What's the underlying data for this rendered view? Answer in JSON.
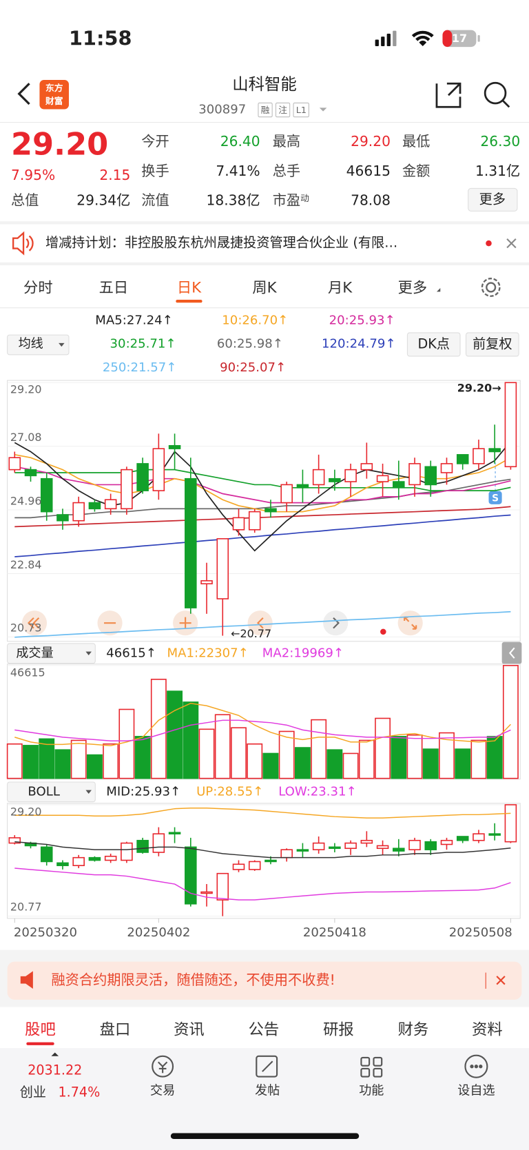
{
  "status": {
    "time": "11:58",
    "battery": "17"
  },
  "header": {
    "logo": [
      "东方",
      "财富"
    ],
    "title": "山科智能",
    "code": "300897",
    "badges": [
      "融",
      "注",
      "L1"
    ]
  },
  "quote": {
    "price": "29.20",
    "change_pct": "7.95%",
    "change": "2.15",
    "fields": [
      {
        "label": "今开",
        "value": "26.40"
      },
      {
        "label": "最高",
        "value": "29.20"
      },
      {
        "label": "最低",
        "value": "26.30"
      },
      {
        "label": "换手",
        "value": "7.41%"
      },
      {
        "label": "总手",
        "value": "46615"
      },
      {
        "label": "金额",
        "value": "1.31亿"
      },
      {
        "label": "总值",
        "value": "29.34亿"
      },
      {
        "label": "流值",
        "value": "18.38亿"
      },
      {
        "label": "市盈",
        "sup": "动",
        "value": "78.08"
      }
    ],
    "more": "更多"
  },
  "notice": "增减持计划：非控股股东杭州晟捷投资管理合伙企业 (有限…",
  "tabs": [
    "分时",
    "五日",
    "日K",
    "周K",
    "月K",
    "更多"
  ],
  "active_tab": 2,
  "chart": {
    "type": "candlestick",
    "indicator_button": "均线",
    "buttons": [
      "DK点",
      "前复权"
    ],
    "ma_legend": [
      {
        "text": "MA5:27.24↑",
        "color": "#222222"
      },
      {
        "text": "10:26.70↑",
        "color": "#f5a623"
      },
      {
        "text": "20:25.93↑",
        "color": "#d42a9c"
      },
      {
        "text": "30:25.71↑",
        "color": "#12a02a"
      },
      {
        "text": "60:25.98↑",
        "color": "#666666"
      },
      {
        "text": "120:24.79↑",
        "color": "#2c3fb8"
      },
      {
        "text": "250:21.57↑",
        "color": "#6bbcf0"
      },
      {
        "text": "90:25.07↑",
        "color": "#c8262d"
      }
    ],
    "dates": [
      "20250320",
      null,
      null,
      null,
      null,
      null,
      null,
      null,
      null,
      "20250402",
      null,
      null,
      null,
      null,
      null,
      null,
      null,
      null,
      null,
      null,
      "20250418",
      null,
      null,
      null,
      null,
      null,
      null,
      null,
      null,
      null,
      null,
      "20250508"
    ],
    "price": {
      "ylim": [
        20.73,
        29.2
      ],
      "yticks": [
        {
          "value": 29.2,
          "label": "29.20"
        },
        {
          "value": 27.08,
          "label": "27.08"
        },
        {
          "value": 24.96,
          "label": "24.96"
        },
        {
          "value": 22.84,
          "label": "22.84"
        },
        {
          "value": 20.73,
          "label": "20.73"
        }
      ],
      "high_label": "29.20→",
      "low_label": "←20.77",
      "candles": [
        {
          "open": 26.3,
          "high": 26.9,
          "low": 26.2,
          "close": 26.7
        },
        {
          "open": 26.3,
          "high": 26.4,
          "low": 25.9,
          "close": 26.1
        },
        {
          "open": 26.0,
          "high": 26.2,
          "low": 24.6,
          "close": 24.9
        },
        {
          "open": 24.8,
          "high": 25.0,
          "low": 24.3,
          "close": 24.6
        },
        {
          "open": 24.6,
          "high": 25.4,
          "low": 24.4,
          "close": 25.2
        },
        {
          "open": 25.2,
          "high": 25.3,
          "low": 24.9,
          "close": 25.0
        },
        {
          "open": 25.0,
          "high": 25.5,
          "low": 24.8,
          "close": 25.3
        },
        {
          "open": 25.0,
          "high": 26.4,
          "low": 24.8,
          "close": 26.3
        },
        {
          "open": 26.5,
          "high": 26.7,
          "low": 25.5,
          "close": 25.6
        },
        {
          "open": 25.6,
          "high": 27.5,
          "low": 25.3,
          "close": 27.0
        },
        {
          "open": 27.1,
          "high": 27.5,
          "low": 26.3,
          "close": 27.0
        },
        {
          "open": 26.0,
          "high": 26.7,
          "low": 21.5,
          "close": 21.7
        },
        {
          "open": 22.5,
          "high": 23.2,
          "low": 21.5,
          "close": 22.6
        },
        {
          "open": 22.0,
          "high": 24.0,
          "low": 20.77,
          "close": 24.0
        },
        {
          "open": 24.3,
          "high": 25.0,
          "low": 24.1,
          "close": 24.7
        },
        {
          "open": 24.3,
          "high": 25.0,
          "low": 24.2,
          "close": 24.9
        },
        {
          "open": 25.0,
          "high": 25.3,
          "low": 24.7,
          "close": 24.9
        },
        {
          "open": 25.2,
          "high": 25.9,
          "low": 24.9,
          "close": 25.8
        },
        {
          "open": 25.8,
          "high": 26.3,
          "low": 25.2,
          "close": 25.7
        },
        {
          "open": 25.8,
          "high": 26.8,
          "low": 25.5,
          "close": 26.3
        },
        {
          "open": 26.0,
          "high": 26.3,
          "low": 25.6,
          "close": 25.9
        },
        {
          "open": 25.9,
          "high": 26.5,
          "low": 25.4,
          "close": 26.3
        },
        {
          "open": 26.3,
          "high": 27.2,
          "low": 26.0,
          "close": 26.5
        },
        {
          "open": 25.9,
          "high": 26.5,
          "low": 25.4,
          "close": 26.1
        },
        {
          "open": 25.9,
          "high": 26.6,
          "low": 25.3,
          "close": 25.7
        },
        {
          "open": 25.8,
          "high": 26.7,
          "low": 25.4,
          "close": 26.5
        },
        {
          "open": 26.4,
          "high": 26.6,
          "low": 25.4,
          "close": 25.8
        },
        {
          "open": 26.2,
          "high": 26.7,
          "low": 25.8,
          "close": 26.5
        },
        {
          "open": 26.8,
          "high": 26.8,
          "low": 26.3,
          "close": 26.5
        },
        {
          "open": 26.5,
          "high": 27.3,
          "low": 26.3,
          "close": 27.0
        },
        {
          "open": 27.0,
          "high": 27.8,
          "low": 26.5,
          "close": 26.9
        },
        {
          "open": 26.4,
          "high": 29.2,
          "low": 26.3,
          "close": 29.2
        }
      ],
      "lines": [
        {
          "color": "#6bbcf0",
          "values": [
            20.72,
            20.75,
            20.77,
            20.8,
            20.83,
            20.86,
            20.88,
            20.91,
            20.94,
            20.97,
            20.99,
            21.02,
            21.05,
            21.08,
            21.1,
            21.13,
            21.16,
            21.19,
            21.21,
            21.24,
            21.27,
            21.3,
            21.32,
            21.35,
            21.38,
            21.41,
            21.43,
            21.46,
            21.49,
            21.52,
            21.54,
            21.57
          ]
        },
        {
          "color": "#2c3fb8",
          "values": [
            23.4,
            23.44,
            23.49,
            23.53,
            23.58,
            23.62,
            23.67,
            23.71,
            23.76,
            23.8,
            23.85,
            23.89,
            23.94,
            23.98,
            24.03,
            24.07,
            24.12,
            24.16,
            24.21,
            24.25,
            24.3,
            24.34,
            24.39,
            24.43,
            24.48,
            24.52,
            24.57,
            24.61,
            24.66,
            24.7,
            24.75,
            24.79
          ]
        },
        {
          "color": "#c8262d",
          "values": [
            24.4,
            24.42,
            24.44,
            24.46,
            24.48,
            24.5,
            24.52,
            24.54,
            24.56,
            24.58,
            24.6,
            24.62,
            24.64,
            24.66,
            24.68,
            24.7,
            24.72,
            24.74,
            24.76,
            24.78,
            24.8,
            24.82,
            24.84,
            24.86,
            24.88,
            24.9,
            24.92,
            24.94,
            24.96,
            24.98,
            25.02,
            25.07
          ]
        },
        {
          "color": "#666666",
          "values": [
            24.7,
            24.7,
            24.75,
            24.8,
            24.8,
            24.85,
            24.9,
            24.9,
            24.95,
            25.0,
            25.0,
            25.0,
            25.0,
            25.0,
            25.0,
            25.0,
            25.05,
            25.1,
            25.1,
            25.15,
            25.2,
            25.25,
            25.3,
            25.35,
            25.4,
            25.5,
            25.55,
            25.6,
            25.7,
            25.8,
            25.9,
            25.98
          ]
        },
        {
          "color": "#12a02a",
          "values": [
            26.2,
            26.2,
            26.2,
            26.2,
            26.2,
            26.2,
            26.2,
            26.2,
            26.3,
            26.3,
            26.3,
            26.2,
            26.1,
            26.0,
            25.9,
            25.8,
            25.8,
            25.7,
            25.7,
            25.7,
            25.7,
            25.7,
            25.7,
            25.7,
            25.7,
            25.7,
            25.6,
            25.6,
            25.6,
            25.6,
            25.6,
            25.71
          ]
        },
        {
          "color": "#d42a9c",
          "values": [
            26.4,
            26.3,
            26.2,
            26.0,
            25.9,
            25.8,
            25.8,
            25.8,
            25.9,
            26.0,
            26.0,
            25.9,
            25.7,
            25.5,
            25.4,
            25.3,
            25.2,
            25.2,
            25.2,
            25.2,
            25.2,
            25.3,
            25.3,
            25.4,
            25.4,
            25.5,
            25.5,
            25.6,
            25.6,
            25.7,
            25.8,
            25.93
          ]
        },
        {
          "color": "#f5a623",
          "values": [
            26.8,
            26.7,
            26.5,
            26.3,
            26.0,
            25.8,
            25.6,
            25.5,
            25.6,
            25.8,
            26.0,
            25.9,
            25.6,
            25.3,
            25.1,
            25.0,
            24.9,
            24.9,
            24.9,
            25.0,
            25.1,
            25.4,
            25.7,
            25.9,
            26.0,
            26.1,
            26.0,
            26.0,
            26.1,
            26.2,
            26.4,
            26.7
          ]
        },
        {
          "color": "#222222",
          "values": [
            27.2,
            26.9,
            26.5,
            26.0,
            25.6,
            25.3,
            25.1,
            25.2,
            25.6,
            26.1,
            26.9,
            26.4,
            25.5,
            24.8,
            24.2,
            23.6,
            24.1,
            24.6,
            25.0,
            25.4,
            25.8,
            26.1,
            26.3,
            26.2,
            26.1,
            26.0,
            25.8,
            25.9,
            26.1,
            26.3,
            26.6,
            27.24
          ]
        }
      ]
    },
    "volume": {
      "button": "成交量",
      "legend": [
        {
          "text": "46615↑",
          "color": "#222222"
        },
        {
          "text": "MA1:22307↑",
          "color": "#f5a623"
        },
        {
          "text": "MA2:19969↑",
          "color": "#e03adf"
        }
      ],
      "ylim": [
        0,
        46615
      ],
      "yticks": [
        46615
      ],
      "values": [
        14200,
        13600,
        16300,
        11800,
        15700,
        9700,
        14200,
        28500,
        17300,
        40900,
        36000,
        31500,
        20300,
        26300,
        20900,
        14200,
        10300,
        19400,
        12700,
        24200,
        11800,
        10300,
        15700,
        24800,
        17300,
        17900,
        12100,
        18800,
        12100,
        15700,
        17300,
        46615
      ],
      "lines": [
        {
          "color": "#f5a623",
          "values": [
            17000,
            15000,
            14000,
            14000,
            14500,
            14000,
            13500,
            15000,
            17000,
            24000,
            28000,
            31000,
            30000,
            28000,
            26000,
            22000,
            19000,
            17000,
            16000,
            17000,
            17000,
            15000,
            15000,
            17000,
            18000,
            18500,
            17000,
            16000,
            15500,
            15000,
            15500,
            22307
          ]
        },
        {
          "color": "#e03adf",
          "values": [
            20000,
            19000,
            18000,
            17000,
            16500,
            16000,
            15500,
            15500,
            16000,
            18000,
            20000,
            22000,
            23000,
            24000,
            24000,
            23500,
            23000,
            22000,
            20000,
            19000,
            18000,
            17500,
            17000,
            17000,
            16800,
            16500,
            16500,
            16700,
            16800,
            17000,
            17000,
            19969
          ]
        }
      ]
    },
    "boll": {
      "button": "BOLL",
      "legend": [
        {
          "text": "MID:25.93↑",
          "color": "#222222"
        },
        {
          "text": "UP:28.55↑",
          "color": "#f5a623"
        },
        {
          "text": "LOW:23.31↑",
          "color": "#e03adf"
        }
      ],
      "ylim": [
        20.77,
        29.2
      ],
      "yticks": [
        {
          "value": 29.2,
          "label": "29.20"
        },
        20.77
      ],
      "lines": [
        {
          "color": "#f5a623",
          "values": [
            28.4,
            28.4,
            28.4,
            28.4,
            28.4,
            28.35,
            28.35,
            28.4,
            28.5,
            28.7,
            28.9,
            28.95,
            28.95,
            28.9,
            28.85,
            28.8,
            28.7,
            28.6,
            28.5,
            28.4,
            28.3,
            28.25,
            28.2,
            28.2,
            28.25,
            28.3,
            28.35,
            28.4,
            28.45,
            28.45,
            28.5,
            28.55
          ]
        },
        {
          "color": "#333333",
          "values": [
            26.4,
            26.3,
            26.2,
            26.0,
            25.9,
            25.8,
            25.8,
            25.8,
            25.9,
            26.0,
            26.0,
            25.9,
            25.7,
            25.5,
            25.4,
            25.3,
            25.2,
            25.2,
            25.2,
            25.2,
            25.2,
            25.3,
            25.3,
            25.4,
            25.4,
            25.5,
            25.5,
            25.6,
            25.6,
            25.7,
            25.8,
            25.93
          ]
        },
        {
          "color": "#e03adf",
          "values": [
            24.4,
            24.3,
            24.2,
            24.1,
            24.0,
            23.9,
            23.9,
            23.8,
            23.6,
            23.4,
            23.2,
            22.5,
            22.2,
            22.1,
            22.0,
            22.0,
            22.1,
            22.2,
            22.3,
            22.4,
            22.5,
            22.55,
            22.6,
            22.6,
            22.62,
            22.65,
            22.68,
            22.7,
            22.72,
            22.75,
            22.9,
            23.31
          ]
        }
      ]
    }
  },
  "ad": "融资合约期限灵活，随借随还，不使用不收费!",
  "bottom_tabs": [
    "股吧",
    "盘口",
    "资讯",
    "公告",
    "研报",
    "财务",
    "资料"
  ],
  "nav": {
    "index_value": "2031.22",
    "index_name": "创业",
    "index_pct": "1.74%",
    "items": [
      "交易",
      "发帖",
      "功能",
      "设自选"
    ]
  }
}
